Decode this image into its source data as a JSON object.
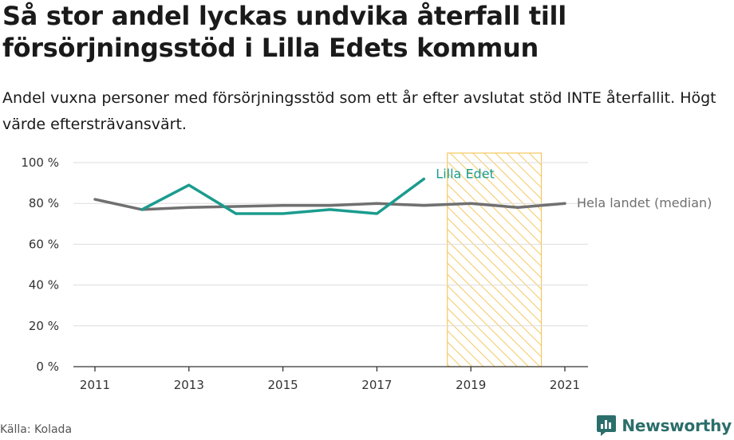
{
  "chart_data": {
    "type": "line",
    "title": "Så stor andel lyckas undvika återfall till försörjningsstöd i Lilla Edets kommun",
    "subtitle": "Andel vuxna personer med försörjningsstöd som ett år efter avslutat stöd INTE återfallit. Högt värde eftersträvansvärt.",
    "x": [
      2011,
      2012,
      2013,
      2014,
      2015,
      2016,
      2017,
      2018,
      2019,
      2020,
      2021
    ],
    "x_tick_labels": [
      "2011",
      "2013",
      "2015",
      "2017",
      "2019",
      "2021"
    ],
    "y_tick_labels": [
      "0 %",
      "20 %",
      "40 %",
      "60 %",
      "80 %",
      "100 %"
    ],
    "ylim": [
      0,
      100
    ],
    "xlim": [
      2011,
      2021
    ],
    "grid": true,
    "series": [
      {
        "name": "Lilla Edet",
        "color": "#1a9c8e",
        "values": [
          null,
          77,
          89,
          75,
          75,
          77,
          75,
          92,
          null,
          null,
          null
        ]
      },
      {
        "name": "Hela landet (median)",
        "color": "#707070",
        "values": [
          82,
          77,
          78,
          78.5,
          79,
          79,
          80,
          79,
          80,
          78,
          80
        ]
      }
    ],
    "highlight_region": {
      "from": 2018.5,
      "to": 2020.5,
      "color": "#f5c860",
      "pattern": "hatch"
    }
  },
  "footer": {
    "source": "Källa: Kolada",
    "brand": "Newsworthy"
  }
}
